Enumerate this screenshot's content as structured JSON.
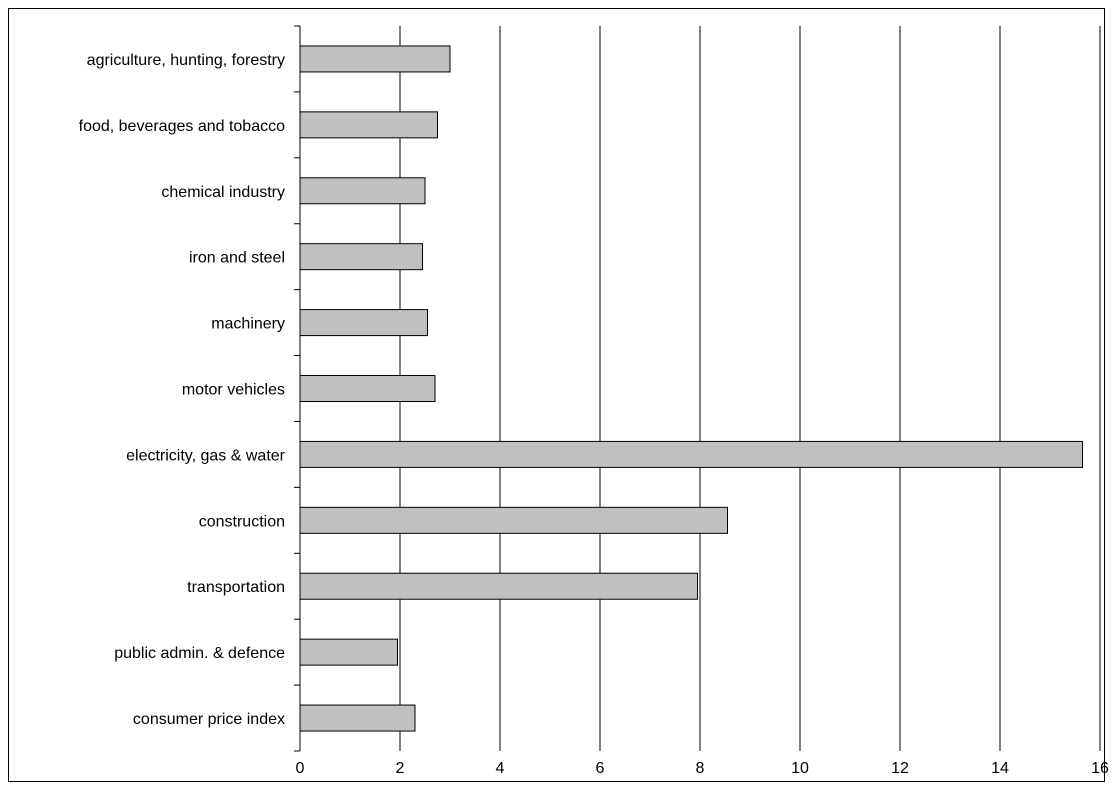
{
  "chart_data": {
    "type": "bar",
    "orientation": "horizontal",
    "title": "",
    "xlabel": "",
    "ylabel": "",
    "categories": [
      "agriculture, hunting, forestry",
      "food, beverages and tobacco",
      "chemical industry",
      "iron and steel",
      "machinery",
      "motor vehicles",
      "electricity, gas & water",
      "construction",
      "transportation",
      "public admin. & defence",
      "consumer price index"
    ],
    "values": [
      3.0,
      2.75,
      2.5,
      2.45,
      2.55,
      2.7,
      15.65,
      8.55,
      7.95,
      1.95,
      2.3
    ],
    "xlim": [
      0,
      16
    ],
    "xticks": [
      "0",
      "2",
      "4",
      "6",
      "8",
      "10",
      "12",
      "14",
      "16"
    ],
    "grid": "vertical",
    "legend": "none",
    "colors": {
      "bar_fill": "#c0c0c0",
      "bar_stroke": "#000000",
      "grid": "#000000"
    }
  }
}
